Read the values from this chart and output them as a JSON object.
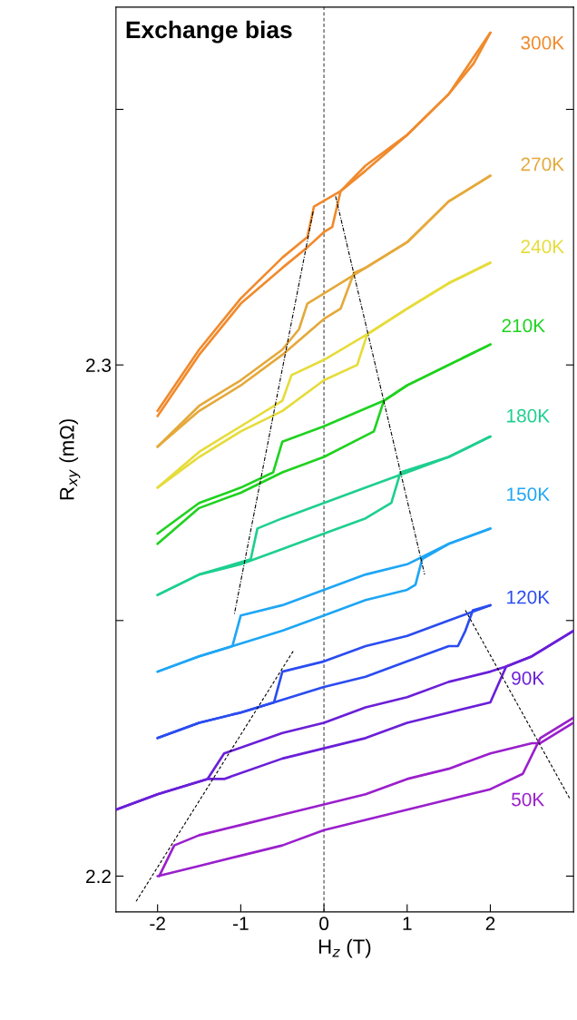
{
  "chart_data": {
    "type": "line",
    "title": "Exchange bias",
    "xlabel": "H$_{z}$ (T)",
    "ylabel": "R$_{xy}$ (mΩ)",
    "xlim": [
      -2.5,
      3
    ],
    "xticks": [
      -2,
      -1,
      0,
      1,
      2
    ],
    "ylim": [
      2.193,
      2.37
    ],
    "yticks": [
      2.2,
      {
        "value": 2.25,
        "label": null
      },
      2.3,
      {
        "value": 2.35,
        "label": null
      }
    ],
    "grid": false,
    "legend": false,
    "marker": "none",
    "line_style": "solid",
    "ref_lines": [
      {
        "axis": "x",
        "value": 0,
        "label": null,
        "color": "#555555",
        "line_style": "dashed"
      }
    ],
    "series": [
      {
        "name": "300K",
        "color": "#f08a2c",
        "x": [
          -2,
          -1.5,
          -1,
          -0.5,
          -0.2,
          0,
          0.1,
          0.2,
          0.5,
          1,
          1.5,
          1.8,
          2
        ],
        "values": [
          2.29,
          2.302,
          2.312,
          2.319,
          2.323,
          2.326,
          2.327,
          2.334,
          2.338,
          2.345,
          2.353,
          2.359,
          2.365
        ]
      },
      {
        "color": "#f08a2c",
        "x": [
          2,
          1.5,
          1,
          0.5,
          0.2,
          -0.12,
          -0.2,
          -0.5,
          -1,
          -1.5,
          -2
        ],
        "values": [
          2.365,
          2.353,
          2.345,
          2.339,
          2.334,
          2.331,
          2.325,
          2.321,
          2.313,
          2.303,
          2.291
        ]
      },
      {
        "name": "270K",
        "color": "#e5a93a",
        "x": [
          -2,
          -1.5,
          -1,
          -0.5,
          0,
          0.2,
          0.36,
          0.5,
          1,
          1.5,
          2
        ],
        "values": [
          2.284,
          2.291,
          2.296,
          2.302,
          2.309,
          2.311,
          2.318,
          2.319,
          2.324,
          2.332,
          2.337
        ]
      },
      {
        "color": "#e5a93a",
        "x": [
          2,
          1.5,
          1,
          0.5,
          0,
          -0.2,
          -0.3,
          -0.5,
          -1,
          -1.5,
          -2
        ],
        "values": [
          2.337,
          2.332,
          2.324,
          2.319,
          2.314,
          2.312,
          2.307,
          2.303,
          2.297,
          2.292,
          2.284
        ]
      },
      {
        "name": "240K",
        "color": "#e6dc3a",
        "x": [
          -2,
          -1.5,
          -1,
          -0.5,
          0,
          0.4,
          0.52,
          1,
          1.5,
          2
        ],
        "values": [
          2.276,
          2.282,
          2.287,
          2.291,
          2.297,
          2.3,
          2.306,
          2.311,
          2.316,
          2.32
        ]
      },
      {
        "color": "#e6dc3a",
        "x": [
          2,
          1.5,
          1,
          0.52,
          0,
          -0.39,
          -0.5,
          -1,
          -1.5,
          -2
        ],
        "values": [
          2.32,
          2.316,
          2.311,
          2.306,
          2.301,
          2.298,
          2.293,
          2.288,
          2.283,
          2.276
        ]
      },
      {
        "name": "210K",
        "color": "#1fd21f",
        "x": [
          -2,
          -1.5,
          -1,
          -0.5,
          0,
          0.6,
          0.72,
          1,
          1.5,
          2
        ],
        "values": [
          2.265,
          2.272,
          2.275,
          2.279,
          2.282,
          2.287,
          2.293,
          2.296,
          2.3,
          2.304
        ]
      },
      {
        "color": "#1fd21f",
        "x": [
          2,
          1.5,
          1,
          0.72,
          0,
          -0.5,
          -0.61,
          -1,
          -1.5,
          -2
        ],
        "values": [
          2.304,
          2.3,
          2.296,
          2.293,
          2.288,
          2.285,
          2.279,
          2.276,
          2.273,
          2.267
        ]
      },
      {
        "name": "180K",
        "color": "#1ecf8f",
        "x": [
          -2,
          -1.5,
          -1,
          -0.5,
          0,
          0.5,
          0.81,
          0.92,
          1.5,
          2
        ],
        "values": [
          2.255,
          2.259,
          2.261,
          2.264,
          2.267,
          2.27,
          2.273,
          2.279,
          2.282,
          2.286
        ]
      },
      {
        "color": "#1ecf8f",
        "x": [
          2,
          1.5,
          1,
          0.5,
          0,
          -0.5,
          -0.8,
          -0.88,
          -1.5,
          -2
        ],
        "values": [
          2.286,
          2.282,
          2.279,
          2.276,
          2.273,
          2.27,
          2.268,
          2.262,
          2.259,
          2.255
        ]
      },
      {
        "name": "150K",
        "color": "#1ea6f5",
        "x": [
          -2,
          -1.5,
          -1.1,
          -0.5,
          0,
          0.5,
          1,
          1.1,
          1.18,
          1.5,
          2
        ],
        "values": [
          2.24,
          2.243,
          2.245,
          2.248,
          2.251,
          2.254,
          2.256,
          2.257,
          2.262,
          2.265,
          2.268
        ]
      },
      {
        "color": "#1ea6f5",
        "x": [
          2,
          1.5,
          1,
          0.5,
          0,
          -0.5,
          -1,
          -1.1,
          -1.5,
          -2
        ],
        "values": [
          2.268,
          2.265,
          2.261,
          2.259,
          2.256,
          2.253,
          2.251,
          2.245,
          2.243,
          2.24
        ]
      },
      {
        "name": "120K",
        "color": "#2a4cf0",
        "x": [
          -2,
          -1.5,
          -1,
          -0.6,
          0,
          0.5,
          1,
          1.5,
          1.61,
          1.7,
          1.79,
          2
        ],
        "values": [
          2.227,
          2.23,
          2.232,
          2.234,
          2.237,
          2.239,
          2.242,
          2.245,
          2.245,
          2.248,
          2.252,
          2.253
        ]
      },
      {
        "color": "#2a4cf0",
        "x": [
          2,
          1.5,
          1,
          0.5,
          0,
          -0.5,
          -0.6,
          -1,
          -1.5,
          -2
        ],
        "values": [
          2.253,
          2.25,
          2.247,
          2.245,
          2.242,
          2.24,
          2.234,
          2.232,
          2.23,
          2.227
        ]
      },
      {
        "name": "90K",
        "color": "#6a1fd8",
        "x": [
          -2.5,
          -2,
          -1.4,
          -1.2,
          -0.5,
          0,
          0.5,
          1,
          1.5,
          2,
          2.19,
          2.5,
          3
        ],
        "values": [
          2.213,
          2.216,
          2.219,
          2.219,
          2.223,
          2.225,
          2.227,
          2.23,
          2.232,
          2.234,
          2.241,
          2.243,
          2.248
        ]
      },
      {
        "color": "#6a1fd8",
        "x": [
          3,
          2.5,
          2.19,
          2,
          1.5,
          1,
          0.5,
          0,
          -0.5,
          -1.2,
          -1.4,
          -2,
          -2.5
        ],
        "values": [
          2.248,
          2.243,
          2.241,
          2.24,
          2.238,
          2.235,
          2.233,
          2.23,
          2.228,
          2.224,
          2.219,
          2.216,
          2.213
        ]
      },
      {
        "name": "50K",
        "color": "#9a1fcc",
        "x": [
          -2,
          -1.5,
          -1,
          -0.5,
          0,
          0.5,
          1,
          1.5,
          2,
          2.39,
          2.6,
          3
        ],
        "values": [
          2.2,
          2.202,
          2.204,
          2.206,
          2.209,
          2.211,
          2.213,
          2.215,
          2.217,
          2.22,
          2.227,
          2.231
        ]
      },
      {
        "color": "#9a1fcc",
        "x": [
          3,
          2.6,
          2.5,
          2,
          1.5,
          1,
          0.5,
          0,
          -0.5,
          -1,
          -1.5,
          -1.8,
          -1.98
        ],
        "values": [
          2.23,
          2.226,
          2.226,
          2.224,
          2.221,
          2.219,
          2.216,
          2.214,
          2.212,
          2.21,
          2.208,
          2.206,
          2.2
        ]
      },
      {
        "color": "#000000",
        "line_style": "dashdot",
        "x": [
          -0.13,
          -1.08
        ],
        "values": [
          2.33,
          2.251
        ]
      },
      {
        "color": "#000000",
        "line_style": "dashdot",
        "x": [
          0.14,
          1.21
        ],
        "values": [
          2.333,
          2.259
        ]
      },
      {
        "color": "#000000",
        "line_style": "dashed",
        "x": [
          -0.37,
          -2.26
        ],
        "values": [
          2.244,
          2.195
        ]
      },
      {
        "color": "#000000",
        "line_style": "dashed",
        "x": [
          1.7,
          2.96
        ],
        "values": [
          2.252,
          2.215
        ]
      }
    ]
  }
}
